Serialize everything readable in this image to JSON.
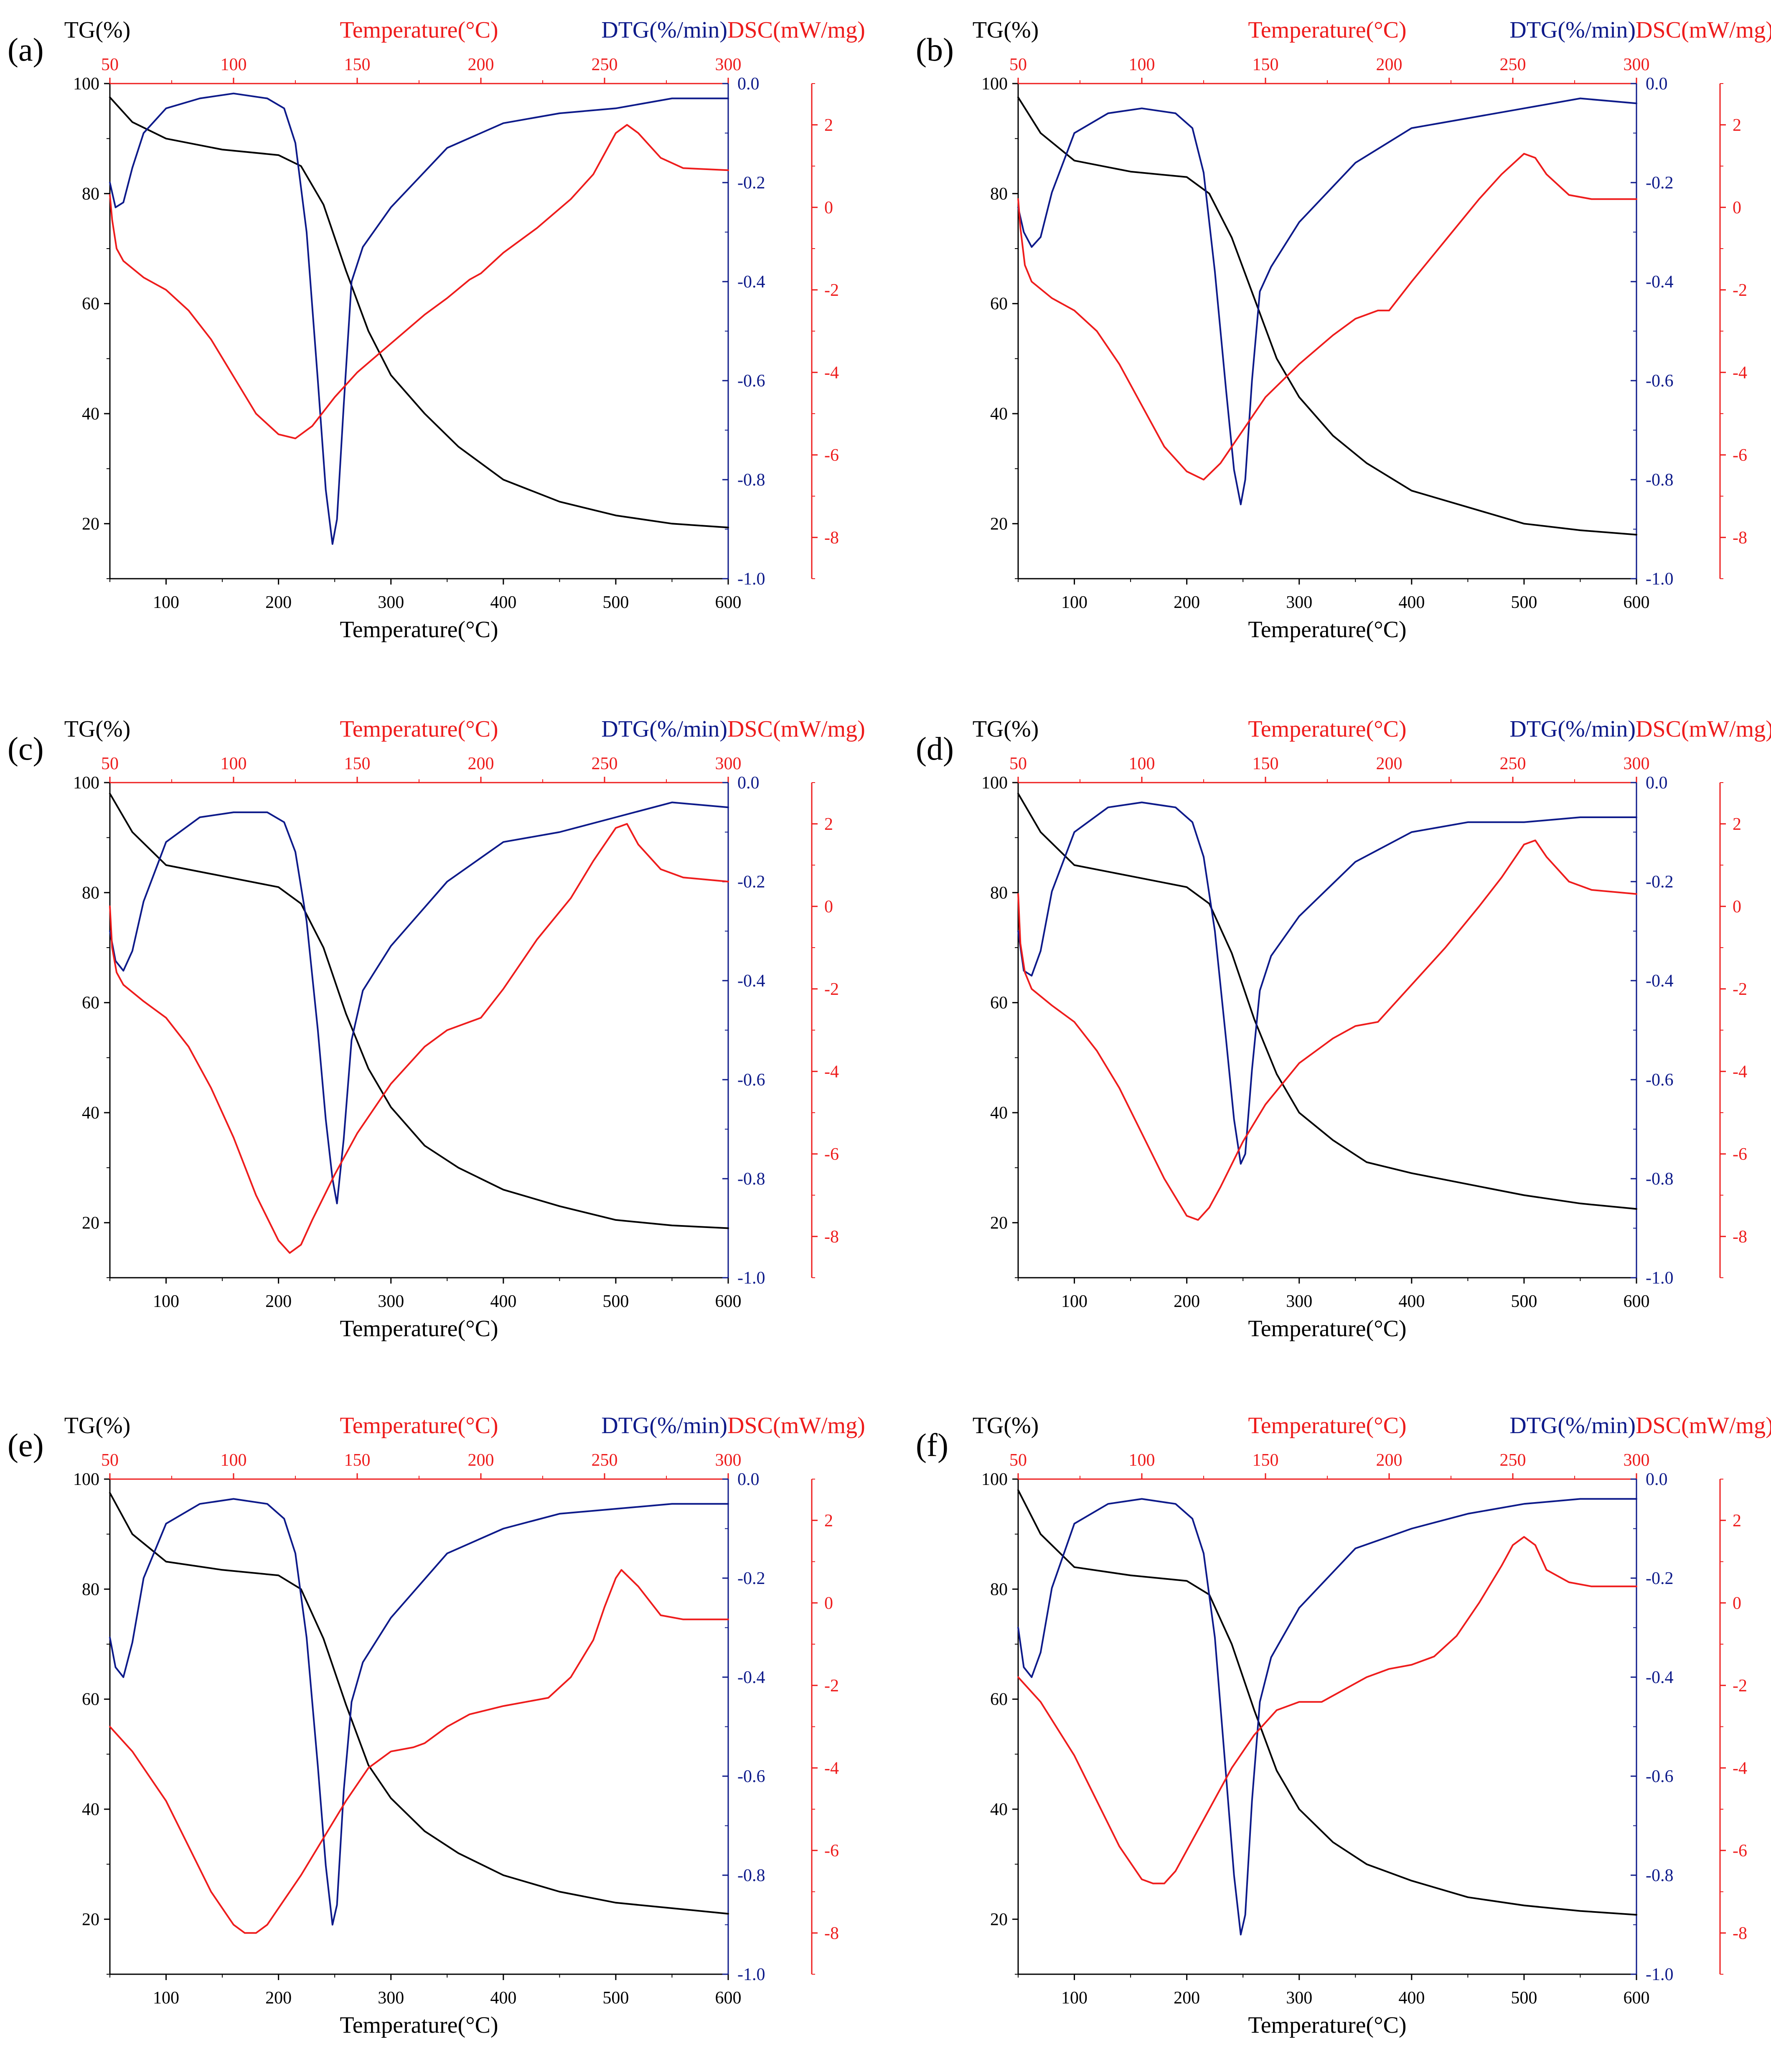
{
  "colors": {
    "tg": "#000000",
    "dtg": "#0d1a8a",
    "dsc": "#ee1c1c",
    "axis": "#000000"
  },
  "axes": {
    "tg_label": "TG(%)",
    "dtg_label": "DTG(%/min)",
    "dsc_label": "DSC(mW/mg)",
    "bottom_label": "Temperature(°C)",
    "top_label": "Temperature(°C)",
    "bottom_range": [
      50,
      600
    ],
    "bottom_ticks": [
      "100",
      "200",
      "300",
      "400",
      "500",
      "600"
    ],
    "top_range": [
      50,
      300
    ],
    "top_ticks": [
      "50",
      "100",
      "150",
      "200",
      "250",
      "300"
    ],
    "tg_range": [
      10,
      100
    ],
    "tg_ticks": [
      "100",
      "80",
      "60",
      "40",
      "20"
    ],
    "dtg_range": [
      -1.0,
      0.0
    ],
    "dtg_ticks": [
      "0.0",
      "-0.2",
      "-0.4",
      "-0.6",
      "-0.8",
      "-1.0"
    ],
    "dsc_range": [
      -9,
      3
    ],
    "dsc_ticks": [
      "2",
      "0",
      "-2",
      "-4",
      "-6",
      "-8"
    ]
  },
  "chart_data": [
    {
      "type": "line",
      "label": "(a)",
      "title": "",
      "xlabel": "Temperature(°C)",
      "series": [
        {
          "name": "TG",
          "axis": "TG(%)",
          "x": [
            50,
            70,
            100,
            150,
            200,
            220,
            240,
            260,
            280,
            300,
            330,
            360,
            400,
            450,
            500,
            550,
            600
          ],
          "y": [
            97.5,
            93,
            90,
            88,
            87,
            85,
            78,
            66,
            55,
            47,
            40,
            34,
            28,
            24,
            21.5,
            20,
            19.3
          ]
        },
        {
          "name": "DTG",
          "axis": "DTG(%/min)",
          "x": [
            50,
            55,
            62,
            70,
            80,
            100,
            130,
            160,
            190,
            205,
            215,
            225,
            235,
            242,
            248,
            252,
            258,
            265,
            275,
            300,
            350,
            400,
            450,
            500,
            550,
            600
          ],
          "y": [
            -0.2,
            -0.25,
            -0.24,
            -0.17,
            -0.1,
            -0.05,
            -0.03,
            -0.02,
            -0.03,
            -0.05,
            -0.12,
            -0.3,
            -0.6,
            -0.82,
            -0.93,
            -0.88,
            -0.65,
            -0.4,
            -0.33,
            -0.25,
            -0.13,
            -0.08,
            -0.06,
            -0.05,
            -0.03,
            -0.03
          ]
        },
        {
          "name": "DSC",
          "axis": "DSC(mW/mg)",
          "x": [
            50,
            52,
            56,
            62,
            80,
            100,
            120,
            140,
            160,
            180,
            200,
            215,
            230,
            250,
            270,
            300,
            330,
            350,
            370,
            380,
            400,
            430,
            460,
            480,
            500,
            510,
            520,
            540,
            560,
            600
          ],
          "y": [
            0.3,
            -0.3,
            -1,
            -1.3,
            -1.7,
            -2,
            -2.5,
            -3.2,
            -4.1,
            -5,
            -5.5,
            -5.6,
            -5.3,
            -4.6,
            -4,
            -3.3,
            -2.6,
            -2.2,
            -1.75,
            -1.6,
            -1.1,
            -0.5,
            0.2,
            0.8,
            1.8,
            2,
            1.8,
            1.2,
            0.95,
            0.9
          ]
        }
      ]
    },
    {
      "type": "line",
      "label": "(b)",
      "title": "",
      "xlabel": "Temperature(°C)",
      "series": [
        {
          "name": "TG",
          "axis": "TG(%)",
          "x": [
            50,
            70,
            100,
            150,
            200,
            220,
            240,
            260,
            280,
            300,
            330,
            360,
            400,
            450,
            500,
            550,
            600
          ],
          "y": [
            97.5,
            91,
            86,
            84,
            83,
            80,
            72,
            61,
            50,
            43,
            36,
            31,
            26,
            23,
            20,
            18.8,
            18
          ]
        },
        {
          "name": "DTG",
          "axis": "DTG(%/min)",
          "x": [
            50,
            55,
            62,
            70,
            80,
            100,
            130,
            160,
            190,
            205,
            215,
            225,
            235,
            242,
            248,
            252,
            258,
            265,
            275,
            300,
            350,
            400,
            450,
            500,
            550,
            600
          ],
          "y": [
            -0.25,
            -0.3,
            -0.33,
            -0.31,
            -0.22,
            -0.1,
            -0.06,
            -0.05,
            -0.06,
            -0.09,
            -0.18,
            -0.38,
            -0.62,
            -0.78,
            -0.85,
            -0.8,
            -0.6,
            -0.42,
            -0.37,
            -0.28,
            -0.16,
            -0.09,
            -0.07,
            -0.05,
            -0.03,
            -0.04
          ]
        },
        {
          "name": "DSC",
          "axis": "DSC(mW/mg)",
          "x": [
            50,
            52,
            56,
            62,
            80,
            100,
            120,
            140,
            160,
            180,
            200,
            215,
            230,
            250,
            270,
            300,
            330,
            350,
            370,
            380,
            400,
            430,
            460,
            480,
            500,
            510,
            520,
            540,
            560,
            600
          ],
          "y": [
            0.2,
            -0.5,
            -1.4,
            -1.8,
            -2.2,
            -2.5,
            -3,
            -3.8,
            -4.8,
            -5.8,
            -6.4,
            -6.6,
            -6.2,
            -5.4,
            -4.6,
            -3.8,
            -3.1,
            -2.7,
            -2.5,
            -2.5,
            -1.8,
            -0.8,
            0.2,
            0.8,
            1.3,
            1.2,
            0.8,
            0.3,
            0.2,
            0.2
          ]
        }
      ]
    },
    {
      "type": "line",
      "label": "(c)",
      "title": "",
      "xlabel": "Temperature(°C)",
      "series": [
        {
          "name": "TG",
          "axis": "TG(%)",
          "x": [
            50,
            70,
            100,
            150,
            200,
            220,
            240,
            260,
            280,
            300,
            330,
            360,
            400,
            450,
            500,
            550,
            600
          ],
          "y": [
            98,
            91,
            85,
            83,
            81,
            78,
            70,
            58,
            48,
            41,
            34,
            30,
            26,
            23,
            20.5,
            19.5,
            19
          ]
        },
        {
          "name": "DTG",
          "axis": "DTG(%/min)",
          "x": [
            50,
            55,
            62,
            70,
            80,
            100,
            130,
            160,
            190,
            205,
            215,
            225,
            235,
            242,
            248,
            252,
            258,
            265,
            275,
            300,
            350,
            400,
            450,
            500,
            550,
            600
          ],
          "y": [
            -0.3,
            -0.36,
            -0.38,
            -0.34,
            -0.24,
            -0.12,
            -0.07,
            -0.06,
            -0.06,
            -0.08,
            -0.14,
            -0.28,
            -0.5,
            -0.68,
            -0.8,
            -0.85,
            -0.72,
            -0.52,
            -0.42,
            -0.33,
            -0.2,
            -0.12,
            -0.1,
            -0.07,
            -0.04,
            -0.05
          ]
        },
        {
          "name": "DSC",
          "axis": "DSC(mW/mg)",
          "x": [
            50,
            52,
            56,
            62,
            80,
            100,
            120,
            140,
            160,
            180,
            200,
            210,
            220,
            230,
            250,
            270,
            300,
            330,
            350,
            370,
            380,
            400,
            430,
            460,
            480,
            500,
            510,
            520,
            540,
            560,
            600
          ],
          "y": [
            0,
            -1,
            -1.6,
            -1.9,
            -2.3,
            -2.7,
            -3.4,
            -4.4,
            -5.6,
            -7,
            -8.1,
            -8.4,
            -8.2,
            -7.6,
            -6.5,
            -5.5,
            -4.3,
            -3.4,
            -3,
            -2.8,
            -2.7,
            -2,
            -0.8,
            0.2,
            1.1,
            1.9,
            2,
            1.5,
            0.9,
            0.7,
            0.6
          ]
        }
      ]
    },
    {
      "type": "line",
      "label": "(d)",
      "title": "",
      "xlabel": "Temperature(°C)",
      "series": [
        {
          "name": "TG",
          "axis": "TG(%)",
          "x": [
            50,
            70,
            100,
            150,
            200,
            220,
            240,
            260,
            280,
            300,
            330,
            360,
            400,
            450,
            500,
            550,
            600
          ],
          "y": [
            98,
            91,
            85,
            83,
            81,
            78,
            69,
            57,
            47,
            40,
            35,
            31,
            29,
            27,
            25,
            23.5,
            22.5
          ]
        },
        {
          "name": "DTG",
          "axis": "DTG(%/min)",
          "x": [
            50,
            55,
            62,
            70,
            80,
            100,
            130,
            160,
            190,
            205,
            215,
            225,
            235,
            242,
            248,
            252,
            258,
            265,
            275,
            300,
            350,
            400,
            450,
            500,
            550,
            600
          ],
          "y": [
            -0.3,
            -0.38,
            -0.39,
            -0.34,
            -0.22,
            -0.1,
            -0.05,
            -0.04,
            -0.05,
            -0.08,
            -0.15,
            -0.3,
            -0.52,
            -0.68,
            -0.77,
            -0.75,
            -0.58,
            -0.42,
            -0.35,
            -0.27,
            -0.16,
            -0.1,
            -0.08,
            -0.08,
            -0.07,
            -0.07
          ]
        },
        {
          "name": "DSC",
          "axis": "DSC(mW/mg)",
          "x": [
            50,
            52,
            56,
            62,
            80,
            100,
            120,
            140,
            160,
            180,
            200,
            210,
            220,
            230,
            250,
            270,
            300,
            330,
            350,
            370,
            380,
            400,
            430,
            460,
            480,
            500,
            510,
            520,
            540,
            560,
            600
          ],
          "y": [
            0.3,
            -0.9,
            -1.6,
            -2,
            -2.4,
            -2.8,
            -3.5,
            -4.4,
            -5.5,
            -6.6,
            -7.5,
            -7.6,
            -7.3,
            -6.8,
            -5.7,
            -4.8,
            -3.8,
            -3.2,
            -2.9,
            -2.8,
            -2.5,
            -1.9,
            -1,
            0,
            0.7,
            1.5,
            1.6,
            1.2,
            0.6,
            0.4,
            0.3
          ]
        }
      ]
    },
    {
      "type": "line",
      "label": "(e)",
      "title": "",
      "xlabel": "Temperature(°C)",
      "series": [
        {
          "name": "TG",
          "axis": "TG(%)",
          "x": [
            50,
            70,
            100,
            150,
            200,
            220,
            240,
            260,
            280,
            300,
            330,
            360,
            400,
            450,
            500,
            550,
            600
          ],
          "y": [
            97.5,
            90,
            85,
            83.5,
            82.5,
            80,
            71,
            59,
            48,
            42,
            36,
            32,
            28,
            25,
            23,
            22,
            21
          ]
        },
        {
          "name": "DTG",
          "axis": "DTG(%/min)",
          "x": [
            50,
            55,
            62,
            70,
            80,
            100,
            130,
            160,
            190,
            205,
            215,
            225,
            235,
            242,
            248,
            252,
            258,
            265,
            275,
            300,
            350,
            400,
            450,
            500,
            550,
            600
          ],
          "y": [
            -0.32,
            -0.38,
            -0.4,
            -0.33,
            -0.2,
            -0.09,
            -0.05,
            -0.04,
            -0.05,
            -0.08,
            -0.15,
            -0.32,
            -0.58,
            -0.78,
            -0.9,
            -0.86,
            -0.63,
            -0.45,
            -0.37,
            -0.28,
            -0.15,
            -0.1,
            -0.07,
            -0.06,
            -0.05,
            -0.05
          ]
        },
        {
          "name": "DSC",
          "axis": "DSC(mW/mg)",
          "x": [
            50,
            70,
            100,
            120,
            140,
            160,
            170,
            180,
            190,
            200,
            220,
            240,
            260,
            280,
            300,
            320,
            330,
            350,
            370,
            400,
            440,
            460,
            480,
            490,
            500,
            505,
            520,
            540,
            560,
            600
          ],
          "y": [
            -3,
            -3.6,
            -4.8,
            -5.9,
            -7,
            -7.8,
            -8,
            -8,
            -7.8,
            -7.4,
            -6.6,
            -5.7,
            -4.8,
            -4,
            -3.6,
            -3.5,
            -3.4,
            -3,
            -2.7,
            -2.5,
            -2.3,
            -1.8,
            -0.9,
            -0.1,
            0.6,
            0.8,
            0.4,
            -0.3,
            -0.4,
            -0.4
          ]
        }
      ]
    },
    {
      "type": "line",
      "label": "(f)",
      "title": "",
      "xlabel": "Temperature(°C)",
      "series": [
        {
          "name": "TG",
          "axis": "TG(%)",
          "x": [
            50,
            70,
            100,
            150,
            200,
            220,
            240,
            260,
            280,
            300,
            330,
            360,
            400,
            450,
            500,
            550,
            600
          ],
          "y": [
            98,
            90,
            84,
            82.5,
            81.5,
            79,
            70,
            58,
            47,
            40,
            34,
            30,
            27,
            24,
            22.5,
            21.5,
            20.8
          ]
        },
        {
          "name": "DTG",
          "axis": "DTG(%/min)",
          "x": [
            50,
            55,
            62,
            70,
            80,
            100,
            130,
            160,
            190,
            205,
            215,
            225,
            235,
            242,
            248,
            252,
            258,
            265,
            275,
            300,
            350,
            400,
            450,
            500,
            550,
            600
          ],
          "y": [
            -0.3,
            -0.38,
            -0.4,
            -0.35,
            -0.22,
            -0.09,
            -0.05,
            -0.04,
            -0.05,
            -0.08,
            -0.15,
            -0.32,
            -0.6,
            -0.8,
            -0.92,
            -0.88,
            -0.65,
            -0.45,
            -0.36,
            -0.26,
            -0.14,
            -0.1,
            -0.07,
            -0.05,
            -0.04,
            -0.04
          ]
        },
        {
          "name": "DSC",
          "axis": "DSC(mW/mg)",
          "x": [
            50,
            70,
            100,
            120,
            140,
            160,
            170,
            180,
            190,
            200,
            220,
            240,
            260,
            280,
            300,
            320,
            340,
            360,
            380,
            400,
            420,
            440,
            460,
            480,
            490,
            500,
            510,
            520,
            540,
            560,
            600
          ],
          "y": [
            -1.8,
            -2.4,
            -3.7,
            -4.8,
            -5.9,
            -6.7,
            -6.8,
            -6.8,
            -6.5,
            -6,
            -5,
            -4,
            -3.2,
            -2.6,
            -2.4,
            -2.4,
            -2.1,
            -1.8,
            -1.6,
            -1.5,
            -1.3,
            -0.8,
            0,
            0.9,
            1.4,
            1.6,
            1.4,
            0.8,
            0.5,
            0.4,
            0.4
          ]
        }
      ]
    }
  ]
}
